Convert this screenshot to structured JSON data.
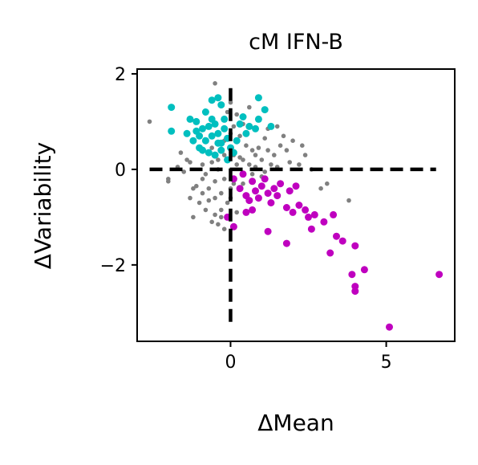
{
  "chart_data": {
    "type": "scatter",
    "title": "cM IFN-B",
    "xlabel": "ΔMean",
    "ylabel": "ΔVariability",
    "xlim": [
      -3.0,
      7.2
    ],
    "ylim": [
      -3.6,
      2.1
    ],
    "xticks": [
      0,
      5
    ],
    "xtick_labels": [
      "0",
      "5"
    ],
    "yticks": [
      -2,
      0,
      2
    ],
    "ytick_labels": [
      "−2",
      "0",
      "2"
    ],
    "grid": false,
    "legend": "none",
    "reference_lines": {
      "x": 0,
      "y": 0,
      "style": "dashed",
      "color": "#000000"
    },
    "colors": {
      "background": "#808080",
      "high_variability": "#00bfbf",
      "low_variability": "#bf00bf"
    },
    "series": [
      {
        "color": "#00bfbf",
        "points": [
          [
            -1.9,
            1.3
          ],
          [
            -1.9,
            0.8
          ],
          [
            -1.3,
            1.05
          ],
          [
            -1.1,
            1.0
          ],
          [
            -0.8,
            1.2
          ],
          [
            -0.6,
            1.45
          ],
          [
            -0.4,
            1.5
          ],
          [
            -0.3,
            1.35
          ],
          [
            -1.4,
            0.75
          ],
          [
            -1.2,
            0.6
          ],
          [
            -1.0,
            0.45
          ],
          [
            -0.9,
            0.85
          ],
          [
            -0.7,
            0.9
          ],
          [
            -0.5,
            0.95
          ],
          [
            -0.6,
            0.7
          ],
          [
            -0.4,
            0.75
          ],
          [
            -0.3,
            0.55
          ],
          [
            -0.2,
            0.85
          ],
          [
            -0.1,
            0.65
          ],
          [
            0.0,
            0.45
          ],
          [
            0.1,
            0.35
          ],
          [
            -0.3,
            0.4
          ],
          [
            -0.5,
            0.3
          ],
          [
            -0.8,
            0.6
          ],
          [
            -1.0,
            0.7
          ],
          [
            -0.9,
            0.4
          ],
          [
            -0.2,
            1.05
          ],
          [
            0.3,
            0.95
          ],
          [
            0.5,
            0.75
          ],
          [
            0.6,
            0.9
          ],
          [
            0.8,
            0.85
          ],
          [
            0.9,
            1.05
          ],
          [
            0.9,
            1.5
          ],
          [
            1.1,
            1.25
          ],
          [
            1.3,
            0.9
          ],
          [
            0.4,
            1.1
          ],
          [
            0.2,
            0.6
          ],
          [
            -0.4,
            0.55
          ],
          [
            -0.6,
            1.05
          ],
          [
            -0.1,
            0.2
          ],
          [
            -0.7,
            0.35
          ],
          [
            -1.1,
            0.8
          ]
        ]
      },
      {
        "color": "#bf00bf",
        "points": [
          [
            0.1,
            -0.2
          ],
          [
            0.3,
            -0.4
          ],
          [
            0.5,
            -0.55
          ],
          [
            0.7,
            -0.25
          ],
          [
            0.8,
            -0.45
          ],
          [
            0.9,
            -0.6
          ],
          [
            1.0,
            -0.35
          ],
          [
            1.1,
            -0.2
          ],
          [
            1.2,
            -0.5
          ],
          [
            1.3,
            -0.7
          ],
          [
            1.5,
            -0.55
          ],
          [
            1.6,
            -0.3
          ],
          [
            1.8,
            -0.8
          ],
          [
            1.9,
            -0.45
          ],
          [
            2.0,
            -0.9
          ],
          [
            2.2,
            -0.75
          ],
          [
            2.4,
            -0.85
          ],
          [
            2.5,
            -1.0
          ],
          [
            2.6,
            -1.25
          ],
          [
            2.7,
            -0.95
          ],
          [
            3.0,
            -1.1
          ],
          [
            3.3,
            -0.95
          ],
          [
            3.4,
            -1.4
          ],
          [
            3.6,
            -1.5
          ],
          [
            3.2,
            -1.75
          ],
          [
            4.0,
            -1.6
          ],
          [
            3.9,
            -2.2
          ],
          [
            4.3,
            -2.1
          ],
          [
            4.0,
            -2.45
          ],
          [
            4.0,
            -2.55
          ],
          [
            5.1,
            -3.3
          ],
          [
            6.7,
            -2.2
          ],
          [
            0.7,
            -0.85
          ],
          [
            0.5,
            -0.9
          ],
          [
            1.8,
            -1.55
          ],
          [
            0.1,
            -1.2
          ],
          [
            -0.1,
            -1.0
          ],
          [
            0.4,
            -0.1
          ],
          [
            0.6,
            -0.65
          ],
          [
            1.4,
            -0.4
          ],
          [
            2.1,
            -0.35
          ],
          [
            1.2,
            -1.3
          ]
        ]
      },
      {
        "color": "#808080",
        "points": [
          [
            -2.6,
            1.0
          ],
          [
            -0.5,
            1.8
          ],
          [
            -2.0,
            -0.2
          ],
          [
            -2.0,
            -0.25
          ],
          [
            -1.5,
            -0.05
          ],
          [
            -1.3,
            -0.6
          ],
          [
            -1.2,
            -0.4
          ],
          [
            -1.0,
            -0.7
          ],
          [
            -1.2,
            -1.0
          ],
          [
            -0.8,
            -0.85
          ],
          [
            -0.6,
            -1.1
          ],
          [
            -0.4,
            -1.15
          ],
          [
            -0.3,
            -1.0
          ],
          [
            -0.2,
            -1.25
          ],
          [
            -0.7,
            -0.4
          ],
          [
            -0.5,
            -0.6
          ],
          [
            -0.9,
            0.1
          ],
          [
            -0.8,
            -0.1
          ],
          [
            -0.6,
            0.15
          ],
          [
            -0.4,
            0.0
          ],
          [
            -0.2,
            -0.2
          ],
          [
            0.0,
            -0.4
          ],
          [
            0.2,
            0.1
          ],
          [
            0.4,
            0.2
          ],
          [
            0.6,
            0.1
          ],
          [
            0.8,
            0.3
          ],
          [
            1.0,
            0.2
          ],
          [
            1.2,
            0.4
          ],
          [
            1.4,
            0.3
          ],
          [
            1.6,
            0.5
          ],
          [
            1.8,
            0.4
          ],
          [
            2.0,
            0.6
          ],
          [
            2.2,
            0.1
          ],
          [
            2.4,
            0.3
          ],
          [
            2.6,
            0.0
          ],
          [
            3.8,
            -0.65
          ],
          [
            3.1,
            -0.3
          ],
          [
            2.9,
            -0.4
          ],
          [
            0.3,
            0.7
          ],
          [
            0.1,
            0.9
          ],
          [
            -0.1,
            1.2
          ],
          [
            0.0,
            1.4
          ],
          [
            0.6,
            1.3
          ],
          [
            1.5,
            0.9
          ],
          [
            1.7,
            0.7
          ],
          [
            1.1,
            0.65
          ],
          [
            0.9,
            0.45
          ],
          [
            0.5,
            0.5
          ],
          [
            -0.9,
            -0.2
          ],
          [
            -1.1,
            -0.35
          ],
          [
            -0.3,
            -0.5
          ],
          [
            -0.1,
            -0.7
          ],
          [
            0.2,
            -0.9
          ],
          [
            0.0,
            -0.6
          ],
          [
            -0.5,
            -0.25
          ],
          [
            -0.7,
            -0.65
          ],
          [
            -0.2,
            0.3
          ],
          [
            0.1,
            0.3
          ],
          [
            0.3,
            0.25
          ],
          [
            0.7,
            0.4
          ],
          [
            0.7,
            -0.1
          ],
          [
            1.1,
            -0.05
          ],
          [
            1.3,
            0.1
          ],
          [
            1.9,
            0.15
          ],
          [
            2.3,
            0.5
          ],
          [
            0.4,
            -0.3
          ],
          [
            -1.4,
            0.2
          ],
          [
            -1.6,
            0.35
          ],
          [
            -1.7,
            0.05
          ],
          [
            -0.6,
            0.45
          ],
          [
            -1.3,
            0.15
          ],
          [
            -0.9,
            -0.5
          ],
          [
            -0.3,
            -0.85
          ],
          [
            -0.5,
            -0.95
          ],
          [
            0.1,
            -0.3
          ],
          [
            0.8,
            0.05
          ],
          [
            1.0,
            -0.15
          ],
          [
            1.5,
            0.05
          ],
          [
            0.2,
            1.15
          ],
          [
            0.4,
            0.95
          ],
          [
            1.2,
            0.85
          ],
          [
            0.0,
            0.75
          ],
          [
            -0.2,
            0.6
          ],
          [
            -0.4,
            0.2
          ]
        ]
      }
    ]
  }
}
